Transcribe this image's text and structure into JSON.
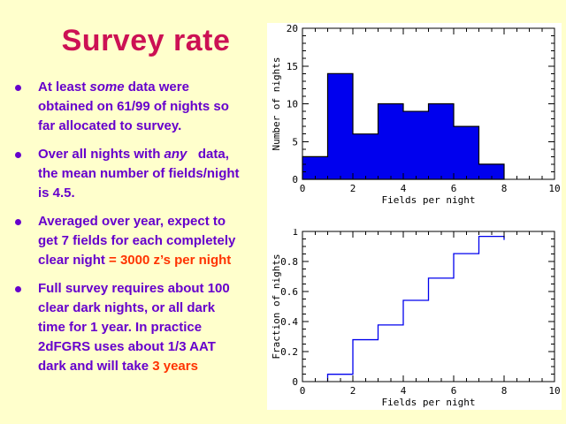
{
  "slide": {
    "background_color": "#FFFFCC",
    "title": {
      "text": "Survey rate",
      "color": "#CC1154"
    },
    "body_text_color": "#6600CC",
    "accent_color": "#FF3300",
    "bullet_icon": "filled-circle",
    "bullets": [
      {
        "segments": [
          {
            "text": "At least "
          },
          {
            "text": "some",
            "italic": true
          },
          {
            "text": " data were\nobtained on 61/99 of nights so\nfar allocated to survey."
          }
        ]
      },
      {
        "segments": [
          {
            "text": "Over all nights with "
          },
          {
            "text": "any",
            "italic": true
          },
          {
            "text": "   data,\nthe mean number of fields/night\nis 4.5."
          }
        ]
      },
      {
        "segments": [
          {
            "text": "Averaged over year, expect to\nget 7 fields for each completely\nclear night "
          },
          {
            "text": "= 3000 z’s per night",
            "accent": true
          }
        ]
      },
      {
        "segments": [
          {
            "text": "Full survey requires about 100\nclear dark nights, or all dark\ntime for 1 year. In practice\n2dFGRS uses about 1/3 AAT\ndark and will take "
          },
          {
            "text": "3 years",
            "accent": true
          }
        ]
      }
    ]
  },
  "chart_data": [
    {
      "type": "bar",
      "subtype": "histogram",
      "title": "",
      "xlabel": "Fields per night",
      "ylabel": "Number of nights",
      "bin_edges": [
        0,
        1,
        2,
        3,
        4,
        5,
        6,
        7,
        8
      ],
      "values": [
        3,
        14,
        6,
        10,
        9,
        10,
        7,
        2
      ],
      "xlim": [
        0,
        10
      ],
      "ylim": [
        0,
        20
      ],
      "xticks": [
        0,
        2,
        4,
        6,
        8,
        10
      ],
      "xtick_labels": [
        "0",
        "2",
        "4",
        "6",
        "8",
        "10"
      ],
      "yticks": [
        0,
        5,
        10,
        15,
        20
      ],
      "ytick_labels": [
        "0",
        "5",
        "10",
        "15",
        "20"
      ],
      "x_minor_step": 0.5,
      "y_minor_step": 1,
      "fill_color": "#0000EE",
      "edge_color": "#000000",
      "grid": false,
      "legend": "none"
    },
    {
      "type": "line",
      "subtype": "cumulative-step",
      "title": "",
      "xlabel": "Fields per night",
      "ylabel": "Fraction of nights",
      "step_edges": [
        1,
        2,
        3,
        4,
        5,
        6,
        7,
        8
      ],
      "values": [
        0.049,
        0.279,
        0.377,
        0.541,
        0.689,
        0.852,
        0.967
      ],
      "xlim": [
        0,
        10
      ],
      "ylim": [
        0,
        1
      ],
      "xticks": [
        0,
        2,
        4,
        6,
        8,
        10
      ],
      "xtick_labels": [
        "0",
        "2",
        "4",
        "6",
        "8",
        "10"
      ],
      "yticks": [
        0,
        0.2,
        0.4,
        0.6,
        0.8,
        1
      ],
      "ytick_labels": [
        "0",
        "0.2",
        "0.4",
        "0.6",
        "0.8",
        "1"
      ],
      "x_minor_step": 0.5,
      "y_minor_step": 0.05,
      "line_color": "#0000EE",
      "grid": false,
      "legend": "none"
    }
  ]
}
